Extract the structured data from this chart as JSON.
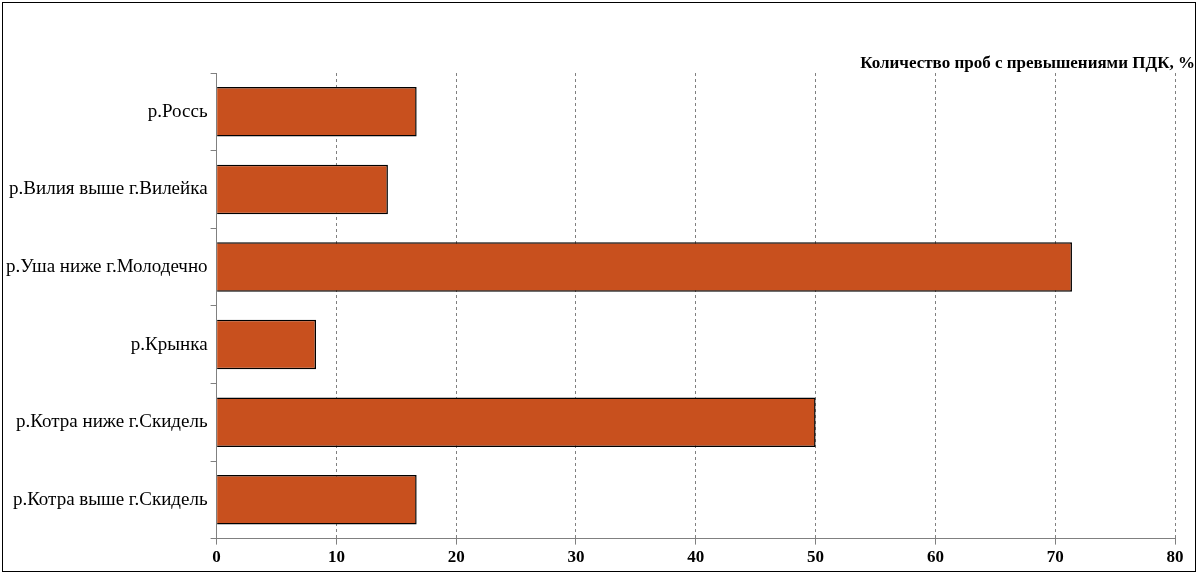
{
  "chart_data": {
    "type": "bar",
    "orientation": "horizontal",
    "title": "Количество проб с превышениями ПДК, %",
    "categories": [
      "р.Россь",
      "р.Вилия выше г.Вилейка",
      "р.Уша ниже г.Молодечно",
      "р.Крынка",
      "р.Котра ниже г.Скидель",
      "р.Котра выше г.Скидель"
    ],
    "values": [
      16.7,
      14.3,
      71.4,
      8.3,
      50,
      16.7
    ],
    "color": "#c8501e",
    "xlim": [
      0,
      80
    ],
    "xticks": [
      0,
      10,
      20,
      30,
      40,
      50,
      60,
      70,
      80
    ],
    "grid": "x",
    "legend": false
  }
}
